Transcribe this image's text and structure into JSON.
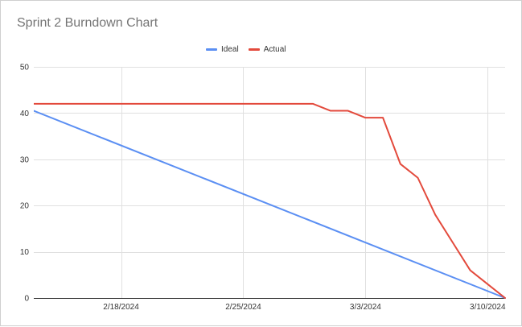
{
  "chart": {
    "title": "Sprint 2 Burndown Chart",
    "legend_position": "top",
    "legend": [
      {
        "key": "ideal",
        "label": "Ideal",
        "color": "#5b8ff3"
      },
      {
        "key": "actual",
        "label": "Actual",
        "color": "#e34a3c"
      }
    ]
  },
  "chart_data": {
    "type": "line",
    "title": "Sprint 2 Burndown Chart",
    "xlabel": "",
    "ylabel": "",
    "x_type": "date",
    "xlim": [
      "2024-02-13",
      "2024-03-11"
    ],
    "ylim": [
      0,
      50
    ],
    "y_ticks": [
      0,
      10,
      20,
      30,
      40,
      50
    ],
    "x_ticks": [
      {
        "date": "2024-02-18",
        "label": "2/18/2024"
      },
      {
        "date": "2024-02-25",
        "label": "2/25/2024"
      },
      {
        "date": "2024-03-03",
        "label": "3/3/2024"
      },
      {
        "date": "2024-03-10",
        "label": "3/10/2024"
      }
    ],
    "grid": true,
    "series": [
      {
        "name": "Ideal",
        "color": "#5b8ff3",
        "points": [
          {
            "x": "2024-02-12",
            "y": 42
          },
          {
            "x": "2024-03-11",
            "y": 0
          }
        ]
      },
      {
        "name": "Actual",
        "color": "#e34a3c",
        "points": [
          {
            "x": "2024-02-12",
            "y": 42
          },
          {
            "x": "2024-02-29",
            "y": 42
          },
          {
            "x": "2024-03-01",
            "y": 40.5
          },
          {
            "x": "2024-03-02",
            "y": 40.5
          },
          {
            "x": "2024-03-03",
            "y": 39
          },
          {
            "x": "2024-03-04",
            "y": 39
          },
          {
            "x": "2024-03-05",
            "y": 29
          },
          {
            "x": "2024-03-06",
            "y": 26
          },
          {
            "x": "2024-03-07",
            "y": 18
          },
          {
            "x": "2024-03-08",
            "y": 12
          },
          {
            "x": "2024-03-09",
            "y": 6
          },
          {
            "x": "2024-03-10",
            "y": 3
          },
          {
            "x": "2024-03-11",
            "y": 0
          }
        ]
      }
    ]
  }
}
